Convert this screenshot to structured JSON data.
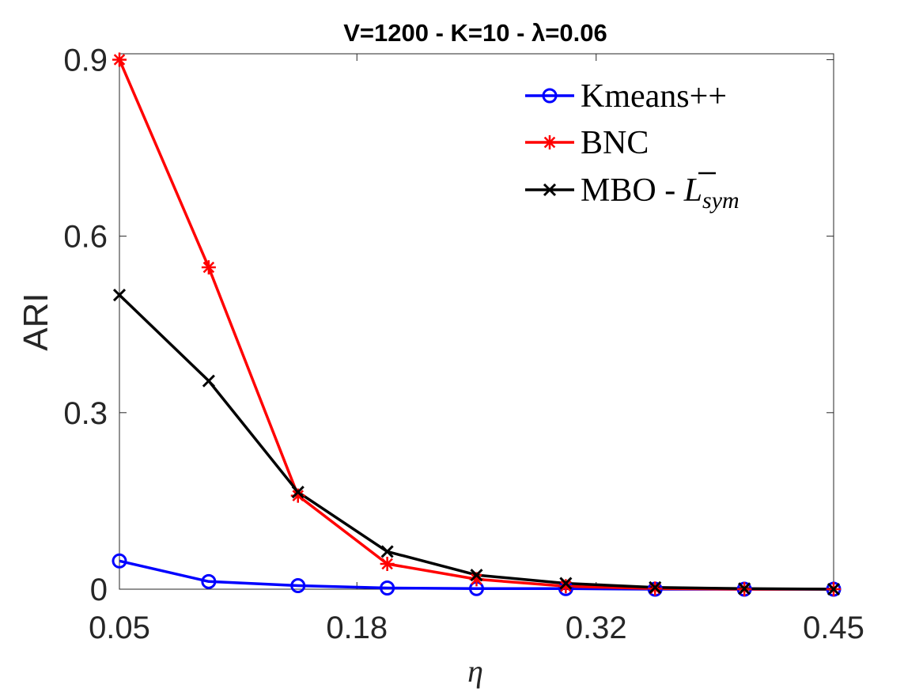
{
  "chart_data": {
    "type": "line",
    "title": "V=1200 - K=10 - λ=0.06",
    "xlabel": "η",
    "ylabel": "ARI",
    "x": [
      0.05,
      0.1,
      0.15,
      0.2,
      0.25,
      0.3,
      0.35,
      0.4,
      0.45
    ],
    "xlim": [
      0.05,
      0.45
    ],
    "ylim": [
      0,
      0.91
    ],
    "xticks": [
      0.05,
      0.183,
      0.317,
      0.45
    ],
    "xtick_labels": [
      "0.05",
      "0.18",
      "0.32",
      "0.45"
    ],
    "yticks": [
      0,
      0.3,
      0.6,
      0.9
    ],
    "ytick_labels": [
      "0",
      "0.3",
      "0.6",
      "0.9"
    ],
    "grid": false,
    "legend_position": "top-right",
    "series": [
      {
        "name": "Kmeans++",
        "color": "#0000ff",
        "marker": "circle",
        "values": [
          0.048,
          0.013,
          0.006,
          0.002,
          0.001,
          0.001,
          0.0,
          0.0,
          0.0
        ]
      },
      {
        "name": "BNC",
        "color": "#ff0000",
        "marker": "asterisk",
        "values": [
          0.9,
          0.547,
          0.159,
          0.043,
          0.017,
          0.005,
          0.001,
          0.0,
          0.0
        ]
      },
      {
        "name": "MBO - L̄sym",
        "legend_main": "MBO - ",
        "legend_symbol": "L",
        "legend_sub": "sym",
        "color": "#000000",
        "marker": "x",
        "values": [
          0.5,
          0.354,
          0.165,
          0.064,
          0.024,
          0.01,
          0.003,
          0.001,
          0.0
        ]
      }
    ]
  }
}
